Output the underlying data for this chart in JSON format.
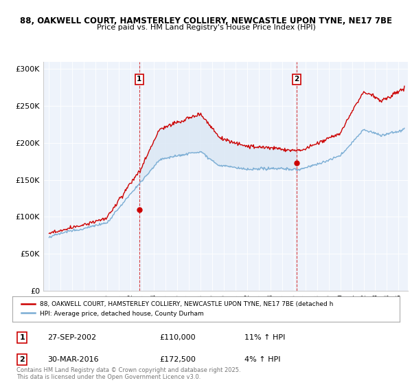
{
  "title1": "88, OAKWELL COURT, HAMSTERLEY COLLIERY, NEWCASTLE UPON TYNE, NE17 7BE",
  "title2": "Price paid vs. HM Land Registry's House Price Index (HPI)",
  "legend_label_red": "88, OAKWELL COURT, HAMSTERLEY COLLIERY, NEWCASTLE UPON TYNE, NE17 7BE (detached h",
  "legend_label_blue": "HPI: Average price, detached house, County Durham",
  "footnote": "Contains HM Land Registry data © Crown copyright and database right 2025.\nThis data is licensed under the Open Government Licence v3.0.",
  "red_color": "#cc0000",
  "blue_color": "#7aadd4",
  "fill_color": "#dce8f5",
  "background_color": "#eef3fb",
  "sale1": {
    "label": "1",
    "date": "27-SEP-2002",
    "price": "£110,000",
    "hpi_change": "11% ↑ HPI",
    "x": 2002.74
  },
  "sale2": {
    "label": "2",
    "date": "30-MAR-2016",
    "price": "£172,500",
    "hpi_change": "4% ↑ HPI",
    "x": 2016.25
  },
  "ylim": [
    0,
    310000
  ],
  "yticks": [
    0,
    50000,
    100000,
    150000,
    200000,
    250000,
    300000
  ],
  "ytick_labels": [
    "£0",
    "£50K",
    "£100K",
    "£150K",
    "£200K",
    "£250K",
    "£300K"
  ],
  "xmin": 1994.5,
  "xmax": 2025.8
}
